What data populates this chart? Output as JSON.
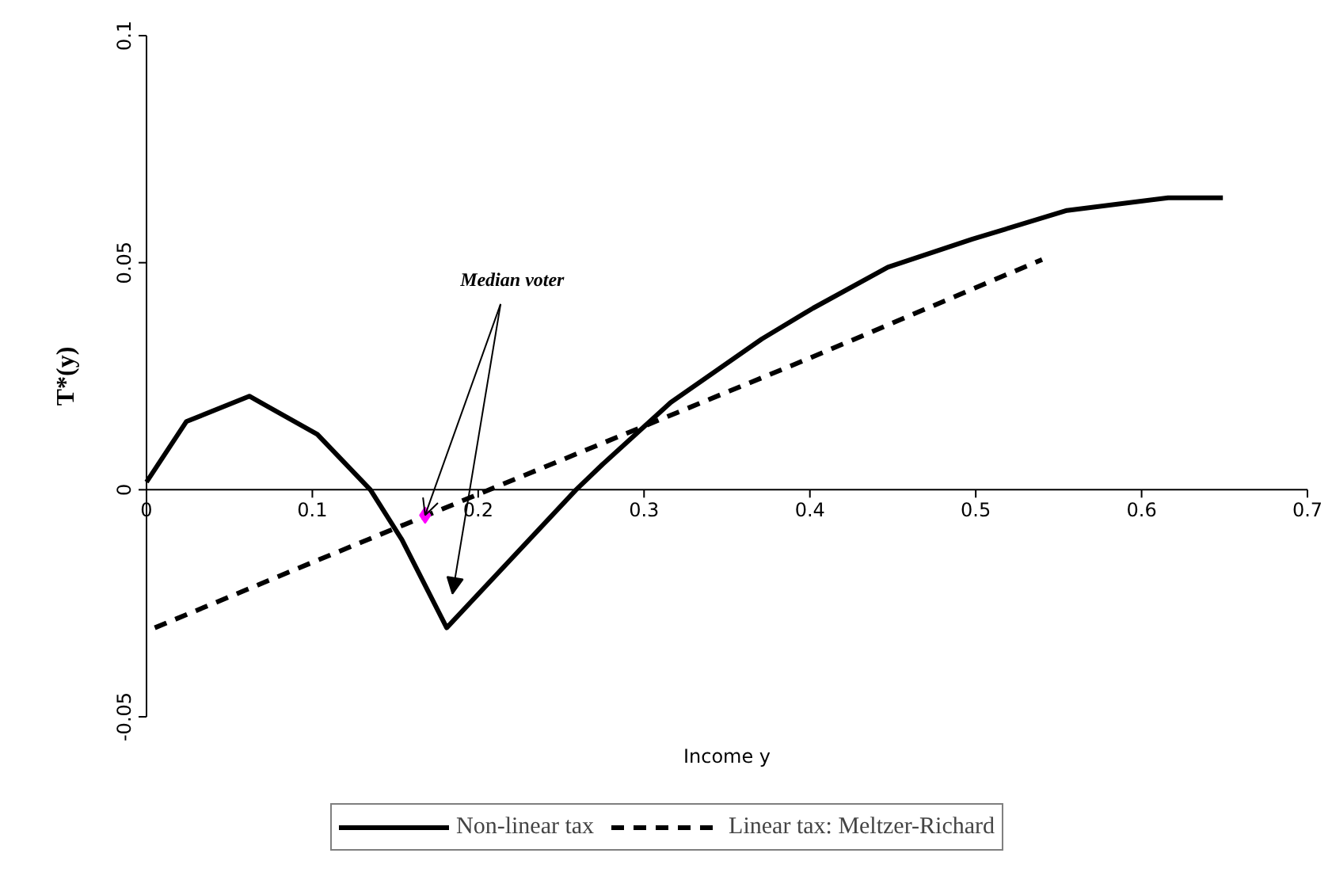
{
  "chart_data": {
    "type": "line",
    "xlabel": "Income y",
    "ylabel": "T*(y)",
    "xlim": [
      0,
      0.7
    ],
    "xticks": [
      0,
      0.1,
      0.2,
      0.3,
      0.4,
      0.5,
      0.6,
      0.7
    ],
    "ylim": [
      -0.05,
      0.1
    ],
    "yticks": [
      -0.05,
      0,
      0.05,
      0.1
    ],
    "grid": false,
    "legend": "bottom",
    "series": [
      {
        "name": "Non-linear tax",
        "color": "#000000",
        "line_style": "solid",
        "x": [
          0,
          0.024,
          0.062,
          0.103,
          0.135,
          0.154,
          0.181,
          0.259,
          0.275,
          0.316,
          0.371,
          0.402,
          0.447,
          0.498,
          0.555,
          0.616,
          0.649
        ],
        "values": [
          0.0017,
          0.015,
          0.0206,
          0.0122,
          0,
          -0.011,
          -0.0304,
          0,
          0.0056,
          0.0192,
          0.0332,
          0.04,
          0.049,
          0.0552,
          0.0615,
          0.0643,
          0.0643
        ]
      },
      {
        "name": "Linear tax: Meltzer-Richard",
        "color": "#000000",
        "line_style": "dashed",
        "x": [
          0.005,
          0.1,
          0.2,
          0.3,
          0.4,
          0.54
        ],
        "values": [
          -0.0304,
          -0.016,
          -0.001,
          0.014,
          0.029,
          0.0507
        ]
      },
      {
        "type": "scatter",
        "marker": "diamond",
        "color": "#ff00ff",
        "x": [
          0.168
        ],
        "values": [
          -0.0056
        ]
      }
    ],
    "annotations": [
      {
        "text": "Median voter",
        "x": 0.168,
        "y": -0.0056
      }
    ]
  }
}
